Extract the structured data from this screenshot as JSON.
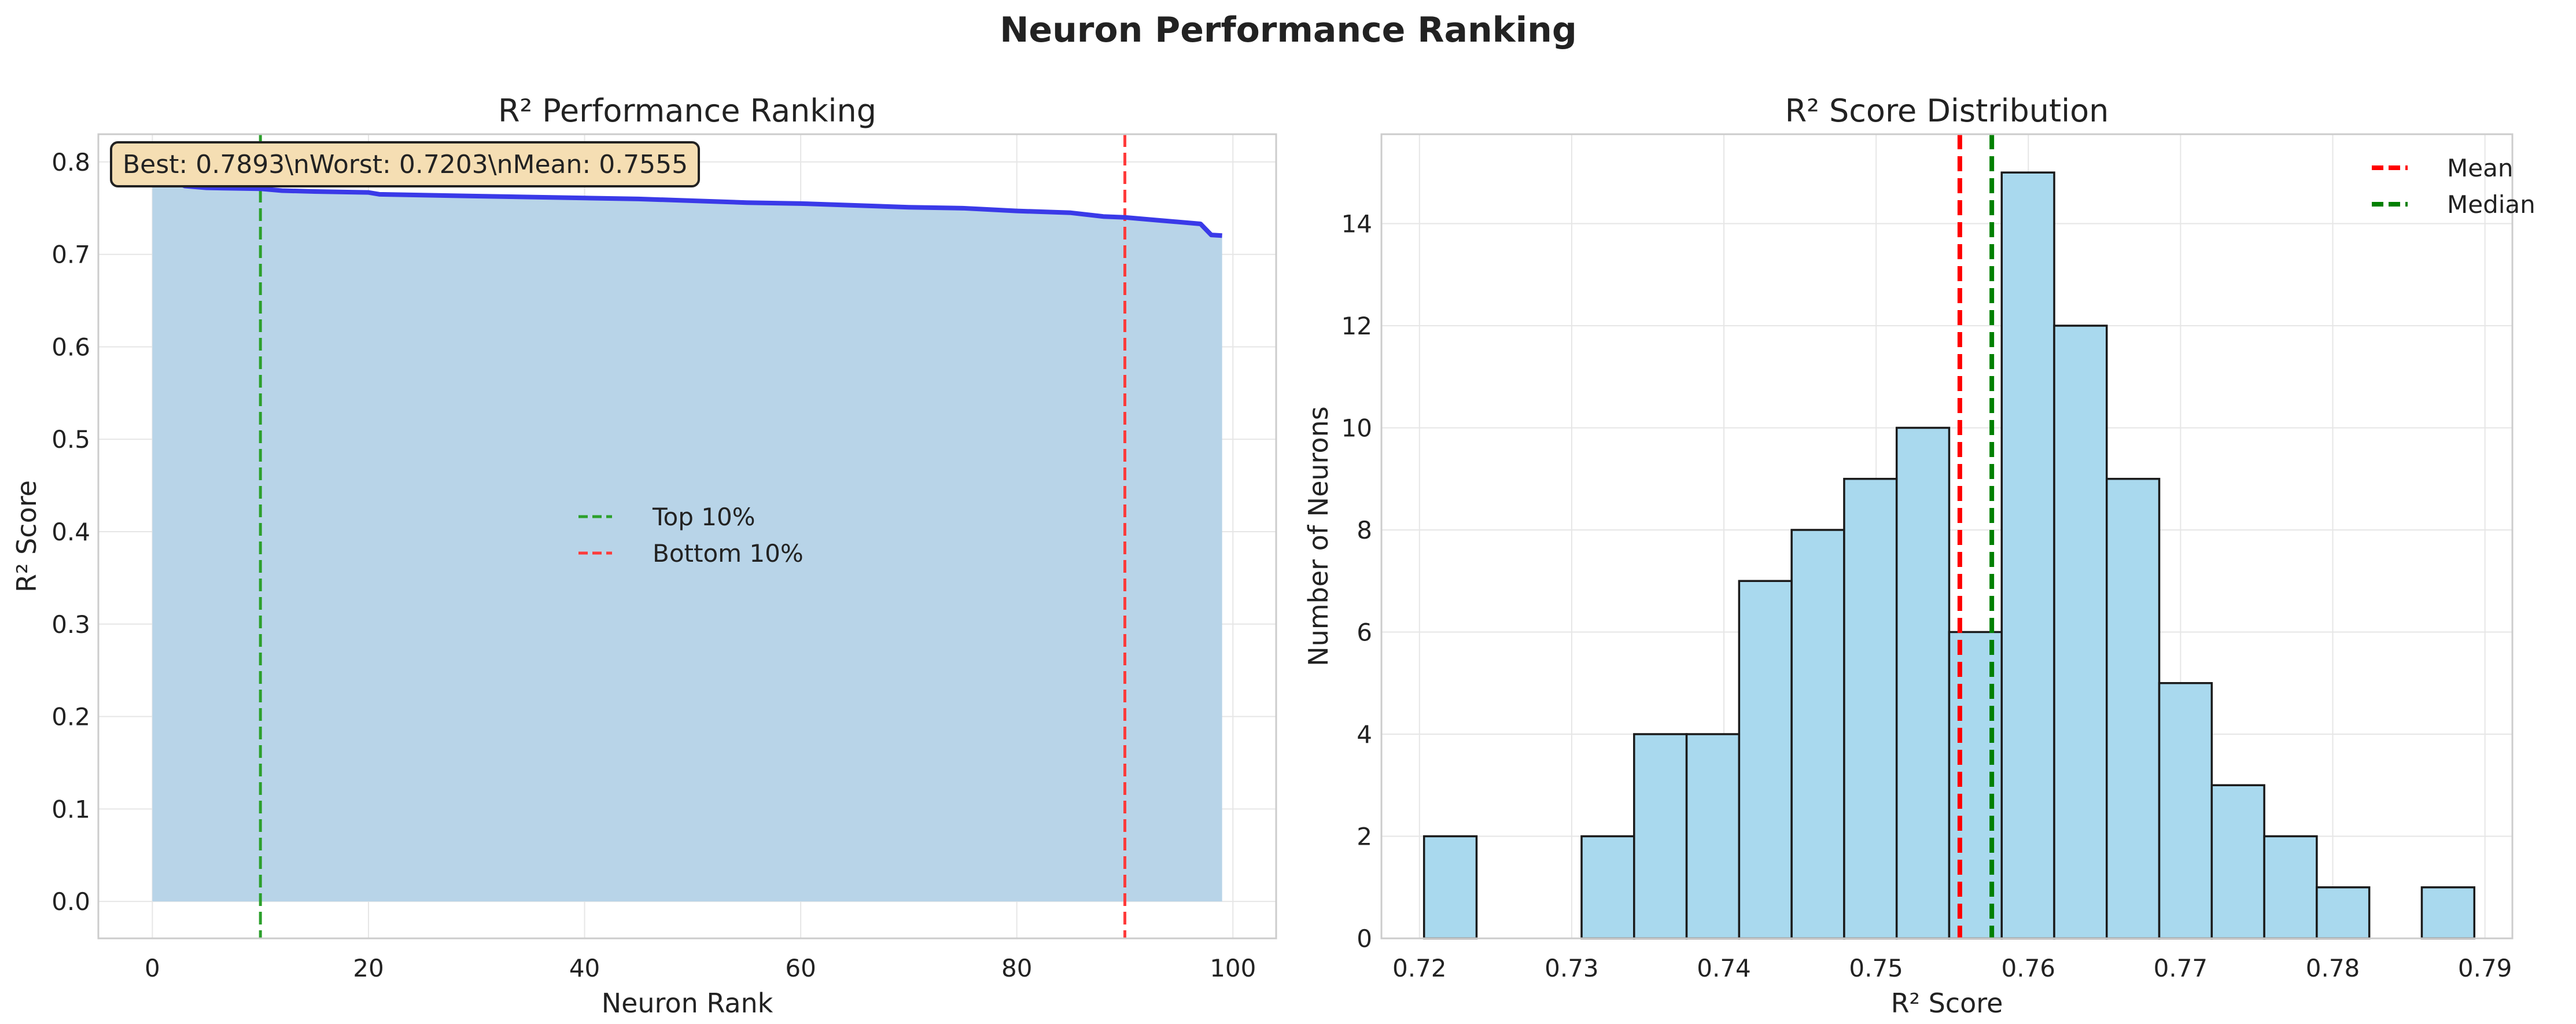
{
  "figure": {
    "suptitle": "Neuron Performance Ranking"
  },
  "colors": {
    "line": "#3a3ae8",
    "fill": "#b8d4e8",
    "top": "#2ca02c",
    "bottom": "#ff3b3b",
    "bar": "#a9d9ee",
    "bar_edge": "#1a1a1a",
    "mean": "#ff0000",
    "median": "#008000",
    "grid": "#e6e6e6",
    "annot_bg": "#f5deb3"
  },
  "chart_data": [
    {
      "type": "area",
      "title": "R² Performance Ranking",
      "xlabel": "Neuron Rank",
      "ylabel": "R² Score",
      "xlim": [
        -5,
        104
      ],
      "ylim": [
        -0.04,
        0.83
      ],
      "xticks": [
        0,
        20,
        40,
        60,
        80,
        100
      ],
      "yticks": [
        0.0,
        0.1,
        0.2,
        0.3,
        0.4,
        0.5,
        0.6,
        0.7,
        0.8
      ],
      "grid": true,
      "curve_points": [
        [
          0,
          0.7893
        ],
        [
          3,
          0.774
        ],
        [
          5,
          0.772
        ],
        [
          10,
          0.771
        ],
        [
          12,
          0.769
        ],
        [
          15,
          0.768
        ],
        [
          20,
          0.767
        ],
        [
          21,
          0.765
        ],
        [
          30,
          0.763
        ],
        [
          40,
          0.761
        ],
        [
          45,
          0.76
        ],
        [
          50,
          0.758
        ],
        [
          55,
          0.756
        ],
        [
          60,
          0.755
        ],
        [
          65,
          0.753
        ],
        [
          70,
          0.751
        ],
        [
          75,
          0.75
        ],
        [
          80,
          0.747
        ],
        [
          85,
          0.745
        ],
        [
          88,
          0.741
        ],
        [
          90,
          0.74
        ],
        [
          93,
          0.737
        ],
        [
          96,
          0.734
        ],
        [
          97,
          0.733
        ],
        [
          98,
          0.721
        ],
        [
          99,
          0.7203
        ]
      ],
      "vlines": [
        {
          "x": 10,
          "label": "Top 10%",
          "color": "#2ca02c"
        },
        {
          "x": 90,
          "label": "Bottom 10%",
          "color": "#ff3b3b"
        }
      ],
      "annotation": "Best: 0.7893\\nWorst: 0.7203\\nMean: 0.7555",
      "legend": {
        "placement": "center",
        "entries": [
          "Top 10%",
          "Bottom 10%"
        ]
      }
    },
    {
      "type": "bar",
      "subtype": "histogram",
      "title": "R² Score Distribution",
      "xlabel": "R² Score",
      "ylabel": "Number of Neurons",
      "xlim": [
        0.7175,
        0.7918
      ],
      "ylim": [
        0,
        15.75
      ],
      "xticks": [
        0.72,
        0.73,
        0.74,
        0.75,
        0.76,
        0.77,
        0.78,
        0.79
      ],
      "xtick_labels": [
        "0.72",
        "0.73",
        "0.74",
        "0.75",
        "0.76",
        "0.77",
        "0.78",
        "0.79"
      ],
      "yticks": [
        0,
        2,
        4,
        6,
        8,
        10,
        12,
        14
      ],
      "grid": true,
      "bins_start": 0.7203,
      "bin_width": 0.00345,
      "counts": [
        2,
        0,
        0,
        2,
        4,
        4,
        7,
        8,
        9,
        10,
        6,
        15,
        12,
        9,
        5,
        3,
        2,
        1,
        0,
        1
      ],
      "mean": 0.7555,
      "median": 0.7576,
      "legend": {
        "placement": "top-right",
        "entries": [
          "Mean",
          "Median"
        ]
      }
    }
  ]
}
